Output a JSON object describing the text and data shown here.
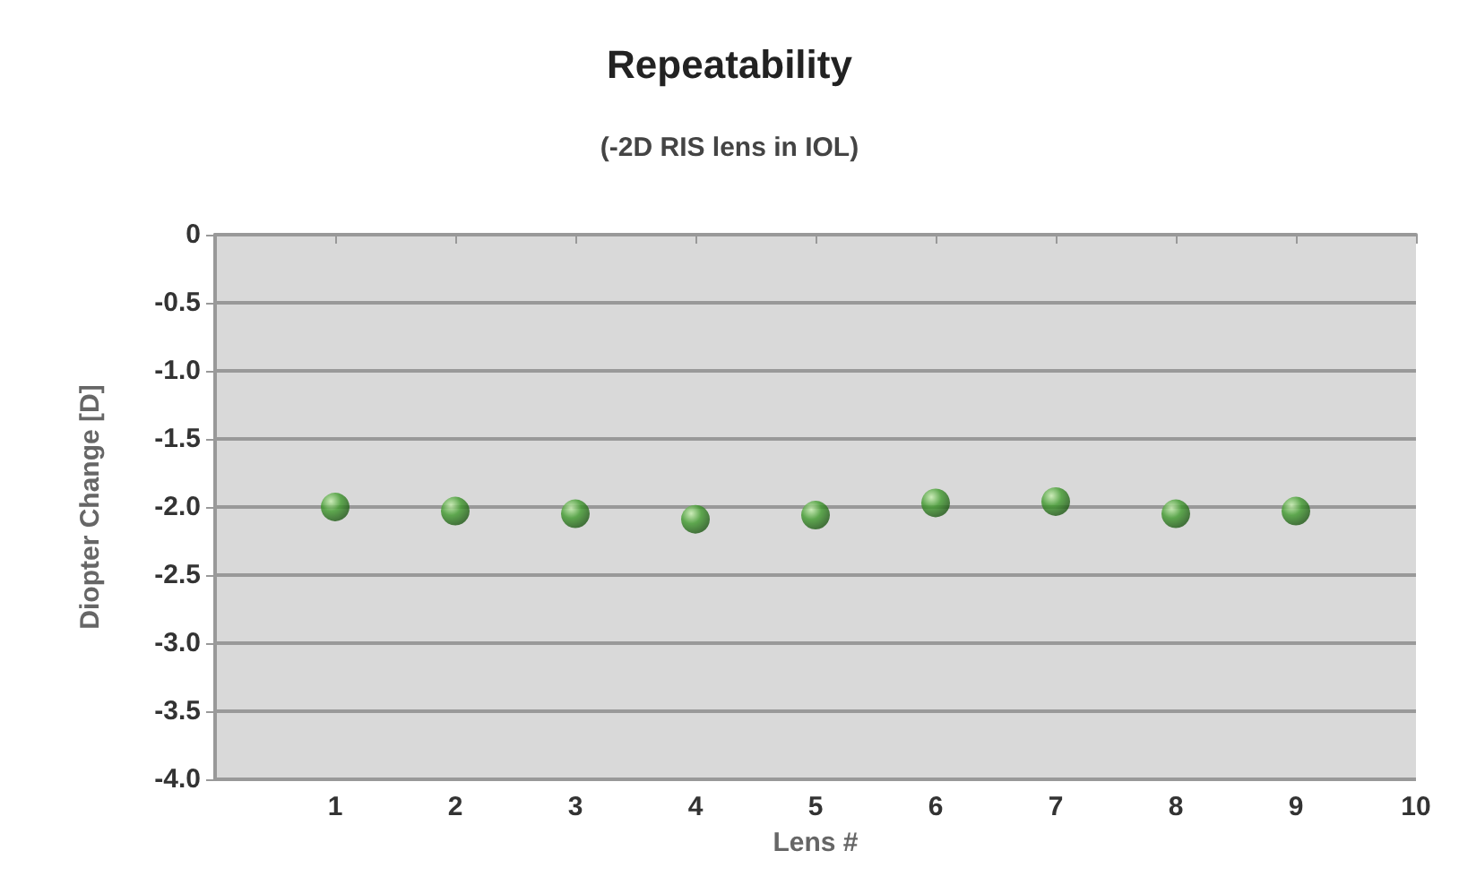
{
  "chart_data": {
    "type": "scatter",
    "title": "Repeatability",
    "subtitle": "(-2D RIS lens in IOL)",
    "xlabel": "Lens #",
    "ylabel": "Diopter Change [D]",
    "x": [
      1,
      2,
      3,
      4,
      5,
      6,
      7,
      8,
      9
    ],
    "series": [
      {
        "color": "#3f9a2c",
        "values": [
          -2.0,
          -2.03,
          -2.05,
          -2.09,
          -2.06,
          -1.97,
          -1.96,
          -2.05,
          -2.03
        ]
      }
    ],
    "xlim": [
      0,
      10
    ],
    "xticks": [
      1,
      2,
      3,
      4,
      5,
      6,
      7,
      8,
      9,
      10
    ],
    "ylim": [
      -4,
      0
    ],
    "yticks": [
      0,
      -0.5,
      {
        "value": -1,
        "label": "-1.0"
      },
      -1.5,
      {
        "value": -2,
        "label": "-2.0"
      },
      -2.5,
      {
        "value": -3,
        "label": "-3.0"
      },
      -3.5,
      {
        "value": -4,
        "label": "-4.0"
      }
    ],
    "grid": "y",
    "marker": "circle"
  }
}
